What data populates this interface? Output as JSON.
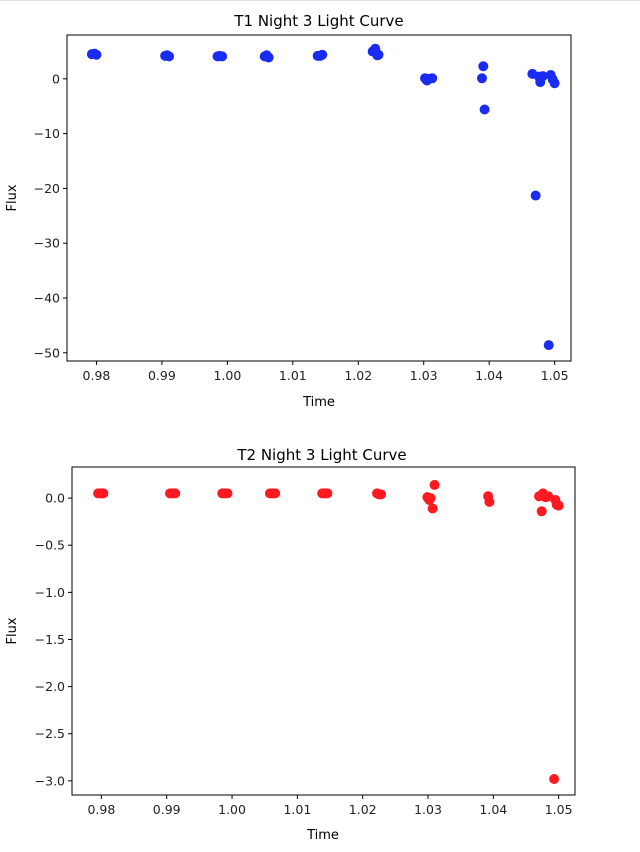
{
  "chart_data": [
    {
      "type": "scatter",
      "title": "T1 Night 3 Light Curve",
      "xlabel": "Time",
      "ylabel": "Flux",
      "xlim": [
        0.9755,
        1.0525
      ],
      "ylim": [
        -51.5,
        8.0
      ],
      "xticks": [
        0.98,
        0.99,
        1.0,
        1.01,
        1.02,
        1.03,
        1.04,
        1.05
      ],
      "xtick_labels": [
        "0.98",
        "0.99",
        "1.00",
        "1.01",
        "1.02",
        "1.03",
        "1.04",
        "1.05"
      ],
      "yticks": [
        0,
        -10,
        -20,
        -30,
        -40,
        -50
      ],
      "ytick_labels": [
        "0",
        "−10",
        "−20",
        "−30",
        "−40",
        "−50"
      ],
      "grid": false,
      "color": "#1a2cf2",
      "series": [
        {
          "x": [
            0.9793,
            0.9797,
            0.98,
            0.9905,
            0.9908,
            0.9911,
            0.9985,
            0.9988,
            0.9992,
            1.0057,
            1.006,
            1.0063,
            1.0138,
            1.0142,
            1.0145,
            1.0222,
            1.0226,
            1.0229,
            1.0231,
            1.0302,
            1.0305,
            1.0308,
            1.0313,
            1.0389,
            1.0391,
            1.0393,
            1.0466,
            1.0471,
            1.0476,
            1.0478,
            1.0482,
            1.0491,
            1.0494,
            1.0497,
            1.05
          ],
          "y": [
            4.5,
            4.6,
            4.4,
            4.2,
            4.3,
            4.1,
            4.1,
            4.2,
            4.1,
            4.1,
            4.3,
            3.9,
            4.2,
            4.2,
            4.4,
            5.0,
            5.5,
            4.3,
            4.4,
            0.1,
            -0.3,
            0.0,
            0.1,
            0.1,
            2.3,
            -5.6,
            0.9,
            -21.3,
            0.4,
            -0.6,
            0.5,
            -48.6,
            0.7,
            -0.1,
            -0.8
          ]
        }
      ]
    },
    {
      "type": "scatter",
      "title": "T2 Night 3 Light Curve",
      "xlabel": "Time",
      "ylabel": "Flux",
      "xlim": [
        0.9755,
        1.0525
      ],
      "ylim": [
        -3.15,
        0.33
      ],
      "xticks": [
        0.98,
        0.99,
        1.0,
        1.01,
        1.02,
        1.03,
        1.04,
        1.05
      ],
      "xtick_labels": [
        "0.98",
        "0.99",
        "1.00",
        "1.01",
        "1.02",
        "1.03",
        "1.04",
        "1.05"
      ],
      "yticks": [
        0.0,
        -0.5,
        -1.0,
        -1.5,
        -2.0,
        -2.5,
        -3.0
      ],
      "ytick_labels": [
        "0.0",
        "−0.5",
        "−1.0",
        "−1.5",
        "−2.0",
        "−2.5",
        "−3.0"
      ],
      "grid": false,
      "color": "#ff1a22",
      "series": [
        {
          "x": [
            0.9795,
            0.9799,
            0.9803,
            0.9905,
            0.9909,
            0.9913,
            0.9985,
            0.9989,
            0.9993,
            1.0058,
            1.0062,
            1.0066,
            1.0138,
            1.0142,
            1.0146,
            1.0222,
            1.0225,
            1.0228,
            1.0299,
            1.0302,
            1.0304,
            1.0307,
            1.031,
            1.0392,
            1.0394,
            1.047,
            1.0474,
            1.0476,
            1.048,
            1.0484,
            1.0493,
            1.0495,
            1.0497,
            1.05
          ],
          "y": [
            0.05,
            0.05,
            0.05,
            0.05,
            0.05,
            0.05,
            0.05,
            0.05,
            0.05,
            0.05,
            0.05,
            0.05,
            0.05,
            0.05,
            0.05,
            0.05,
            0.04,
            0.04,
            0.01,
            -0.02,
            0.0,
            -0.11,
            0.14,
            0.02,
            -0.04,
            0.02,
            -0.14,
            0.05,
            0.01,
            0.02,
            -2.98,
            -0.02,
            -0.07,
            -0.08
          ]
        }
      ]
    }
  ]
}
